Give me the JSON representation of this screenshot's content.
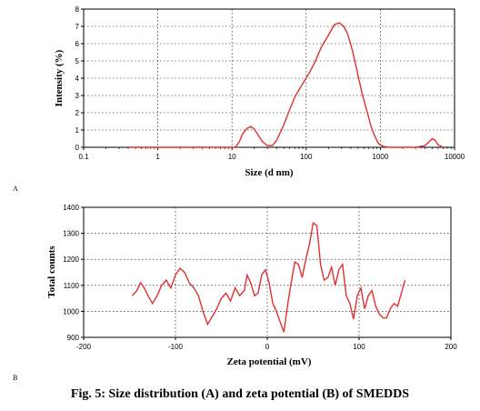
{
  "caption": "Fig. 5: Size distribution (A) and zeta potential (B) of SMEDDS",
  "chart_data": [
    {
      "id": "A",
      "panel_label": "A",
      "type": "line",
      "xlabel": "Size (d nm)",
      "ylabel": "Intensity (%)",
      "xscale": "log",
      "xlim": [
        0.1,
        10000
      ],
      "ylim": [
        0,
        8
      ],
      "xticks": [
        0.1,
        1,
        10,
        100,
        1000,
        10000
      ],
      "xtick_labels": [
        "0.1",
        "1",
        "10",
        "100",
        "1000",
        "10000"
      ],
      "yticks": [
        0,
        1,
        2,
        3,
        4,
        5,
        6,
        7,
        8
      ],
      "grid": true,
      "line_color": "#e03030",
      "series": [
        {
          "x": [
            0.4,
            5,
            11,
            12.5,
            14,
            16,
            18,
            20,
            23,
            26,
            30,
            35,
            40,
            50,
            60,
            70,
            90,
            110,
            130,
            160,
            200,
            240,
            280,
            320,
            360,
            420,
            480,
            560,
            650,
            750,
            850,
            950,
            1100,
            1300,
            2000,
            3000,
            4000,
            4500,
            5000,
            5500,
            6000,
            7000
          ],
          "y": [
            0,
            0,
            0,
            0.3,
            0.8,
            1.1,
            1.2,
            1.05,
            0.65,
            0.3,
            0.1,
            0.1,
            0.4,
            1.3,
            2.2,
            2.9,
            3.7,
            4.3,
            4.9,
            5.8,
            6.5,
            7.1,
            7.2,
            7.0,
            6.6,
            5.6,
            4.5,
            3.2,
            2.2,
            1.2,
            0.6,
            0.2,
            0.05,
            0,
            0,
            0,
            0.1,
            0.3,
            0.5,
            0.4,
            0.15,
            0
          ]
        }
      ]
    },
    {
      "id": "B",
      "panel_label": "B",
      "type": "line",
      "xlabel": "Zeta potential (mV)",
      "ylabel": "Total counts",
      "xlim": [
        -200,
        200
      ],
      "ylim": [
        900,
        1400
      ],
      "xticks": [
        -200,
        -100,
        0,
        100,
        200
      ],
      "yticks": [
        900,
        1000,
        1100,
        1200,
        1300,
        1400
      ],
      "grid": true,
      "line_color": "#e03030",
      "series": [
        {
          "x": [
            -147,
            -142,
            -138,
            -134,
            -130,
            -125,
            -120,
            -115,
            -110,
            -105,
            -100,
            -95,
            -90,
            -85,
            -80,
            -75,
            -70,
            -65,
            -60,
            -55,
            -50,
            -45,
            -40,
            -35,
            -30,
            -25,
            -22,
            -18,
            -14,
            -10,
            -6,
            -2,
            2,
            6,
            10,
            14,
            18,
            22,
            26,
            30,
            34,
            38,
            42,
            46,
            50,
            54,
            58,
            62,
            66,
            70,
            74,
            78,
            82,
            86,
            90,
            94,
            98,
            102,
            106,
            110,
            114,
            118,
            122,
            126,
            130,
            134,
            138,
            142,
            146,
            150
          ],
          "y": [
            1060,
            1080,
            1110,
            1090,
            1060,
            1030,
            1060,
            1100,
            1120,
            1090,
            1140,
            1165,
            1150,
            1110,
            1090,
            1060,
            1000,
            950,
            980,
            1010,
            1050,
            1070,
            1040,
            1090,
            1060,
            1080,
            1140,
            1110,
            1060,
            1070,
            1140,
            1160,
            1110,
            1030,
            1000,
            960,
            920,
            1020,
            1110,
            1190,
            1180,
            1130,
            1200,
            1260,
            1340,
            1330,
            1180,
            1120,
            1130,
            1170,
            1100,
            1160,
            1180,
            1060,
            1030,
            970,
            1060,
            1090,
            1010,
            1060,
            1080,
            1020,
            990,
            975,
            975,
            1010,
            1030,
            1020,
            1070,
            1120
          ]
        }
      ]
    }
  ]
}
